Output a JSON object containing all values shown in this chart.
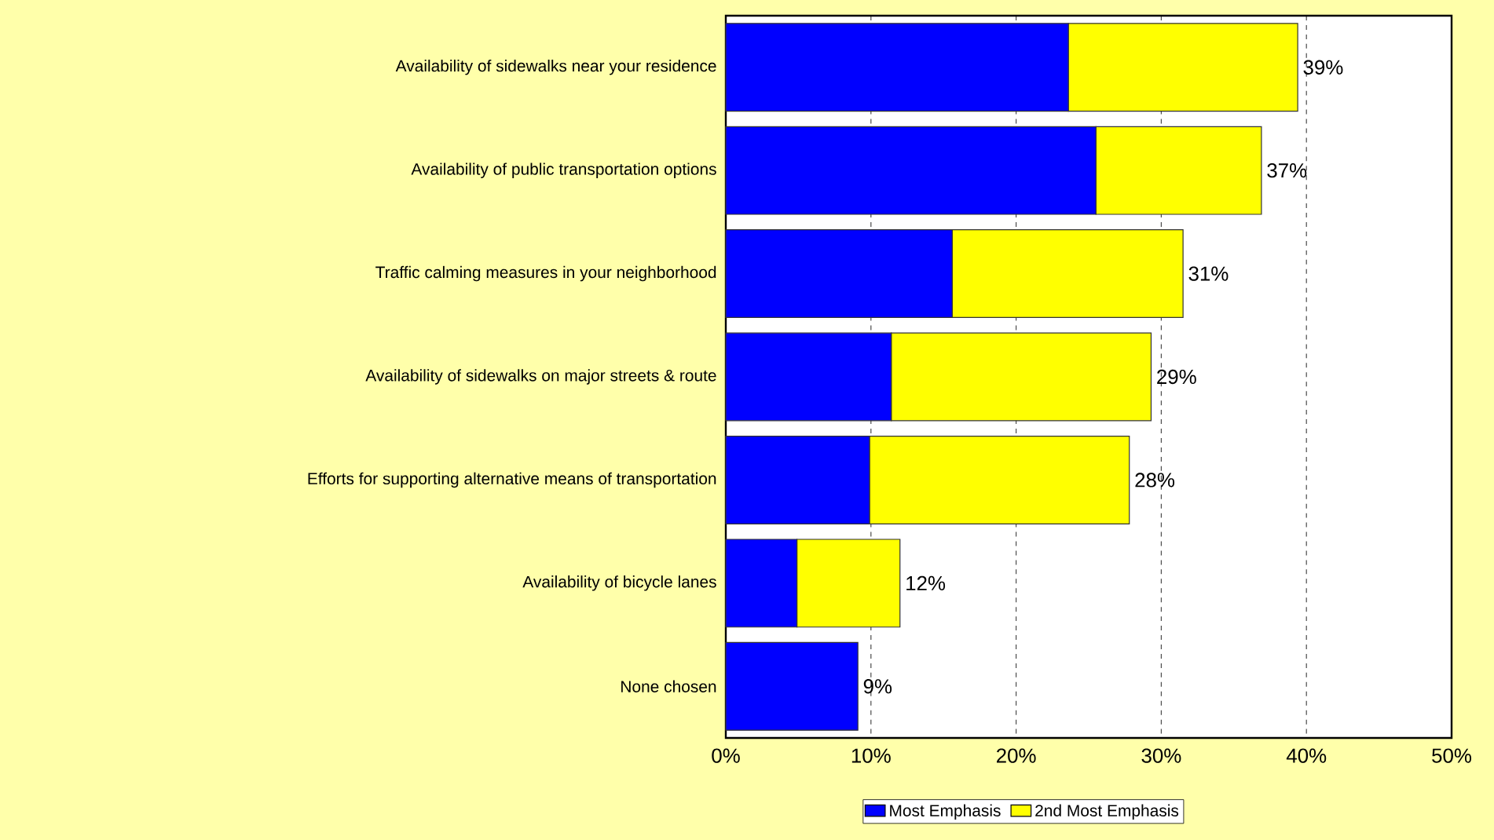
{
  "chart_data": {
    "type": "bar",
    "orientation": "horizontal",
    "stacked": true,
    "categories": [
      "Availability of sidewalks near your residence",
      "Availability of public transportation options",
      "Traffic calming measures in your neighborhood",
      "Availability of sidewalks on major streets & route",
      "Efforts for supporting alternative means of transportation",
      "Availability of bicycle lanes",
      "None chosen"
    ],
    "series": [
      {
        "name": "Most Emphasis",
        "color": "#0000ff",
        "values": [
          23.6,
          25.5,
          15.6,
          11.4,
          9.9,
          4.9,
          9.1
        ]
      },
      {
        "name": "2nd Most Emphasis",
        "color": "#ffff00",
        "values": [
          15.8,
          11.4,
          15.9,
          17.9,
          17.9,
          7.1,
          null
        ]
      }
    ],
    "totals": [
      "39%",
      "37%",
      "31%",
      "29%",
      "28%",
      "12%",
      "9%"
    ],
    "xlim": [
      0,
      50
    ],
    "xticks": [
      {
        "value": 0,
        "label": "0%"
      },
      {
        "value": 10,
        "label": "10%"
      },
      {
        "value": 20,
        "label": "20%"
      },
      {
        "value": 30,
        "label": "30%"
      },
      {
        "value": 40,
        "label": "40%"
      },
      {
        "value": 50,
        "label": "50%"
      }
    ],
    "grid": "x",
    "legend": "bottom"
  }
}
